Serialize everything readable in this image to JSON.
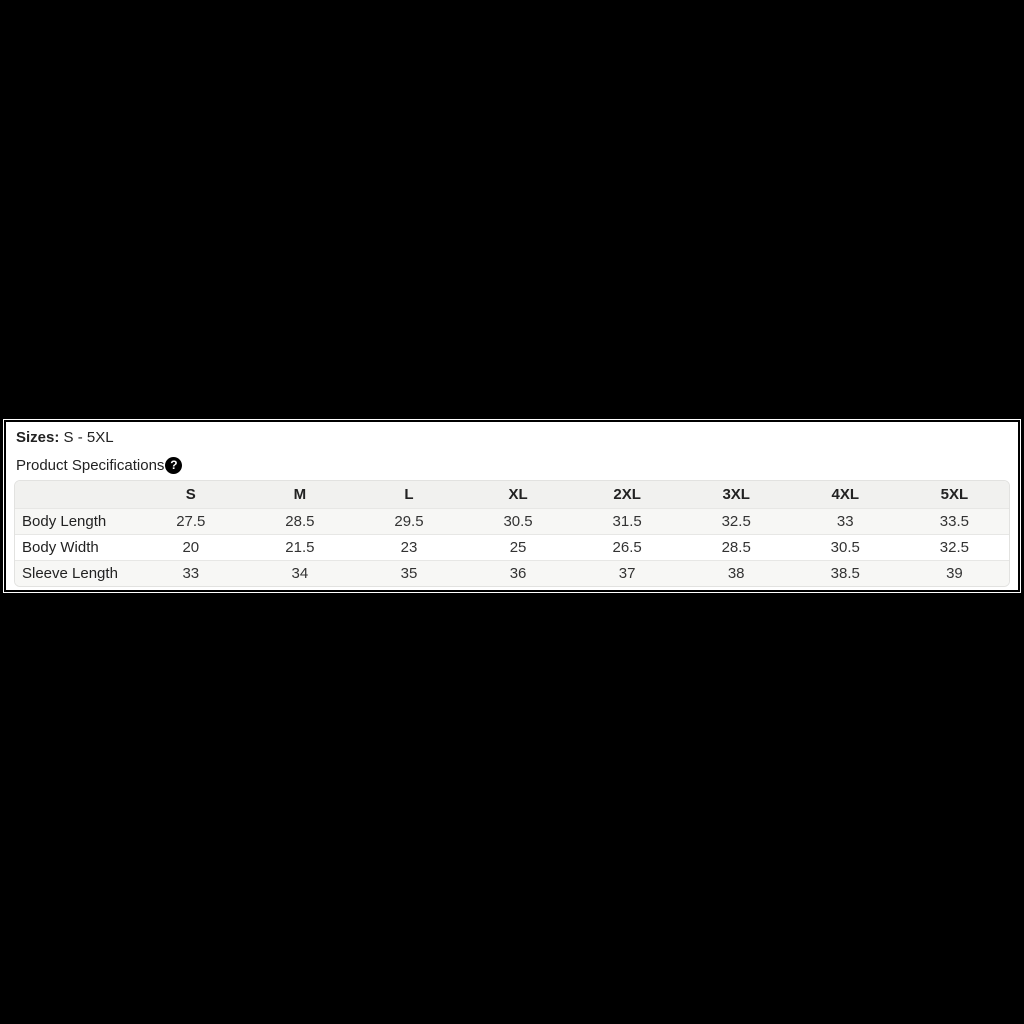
{
  "panel": {
    "sizes_label": "Sizes:",
    "sizes_value": "S - 5XL",
    "spec_label": "Product Specifications",
    "help_icon_glyph": "?"
  },
  "table": {
    "columns": [
      "",
      "S",
      "M",
      "L",
      "XL",
      "2XL",
      "3XL",
      "4XL",
      "5XL"
    ],
    "rows": [
      {
        "label": "Body Length",
        "values": [
          "27.5",
          "28.5",
          "29.5",
          "30.5",
          "31.5",
          "32.5",
          "33",
          "33.5"
        ]
      },
      {
        "label": "Body Width",
        "values": [
          "20",
          "21.5",
          "23",
          "25",
          "26.5",
          "28.5",
          "30.5",
          "32.5"
        ]
      },
      {
        "label": "Sleeve Length",
        "values": [
          "33",
          "34",
          "35",
          "36",
          "37",
          "38",
          "38.5",
          "39"
        ]
      }
    ]
  },
  "colors": {
    "page_bg": "#000000",
    "panel_bg": "#ffffff",
    "header_bg": "#f1f1ef",
    "stripe_bg": "#f7f7f5",
    "table_border": "#e2e2e0",
    "row_border": "#e7e7e5",
    "help_icon_bg": "#000000",
    "help_icon_fg": "#ffffff"
  }
}
